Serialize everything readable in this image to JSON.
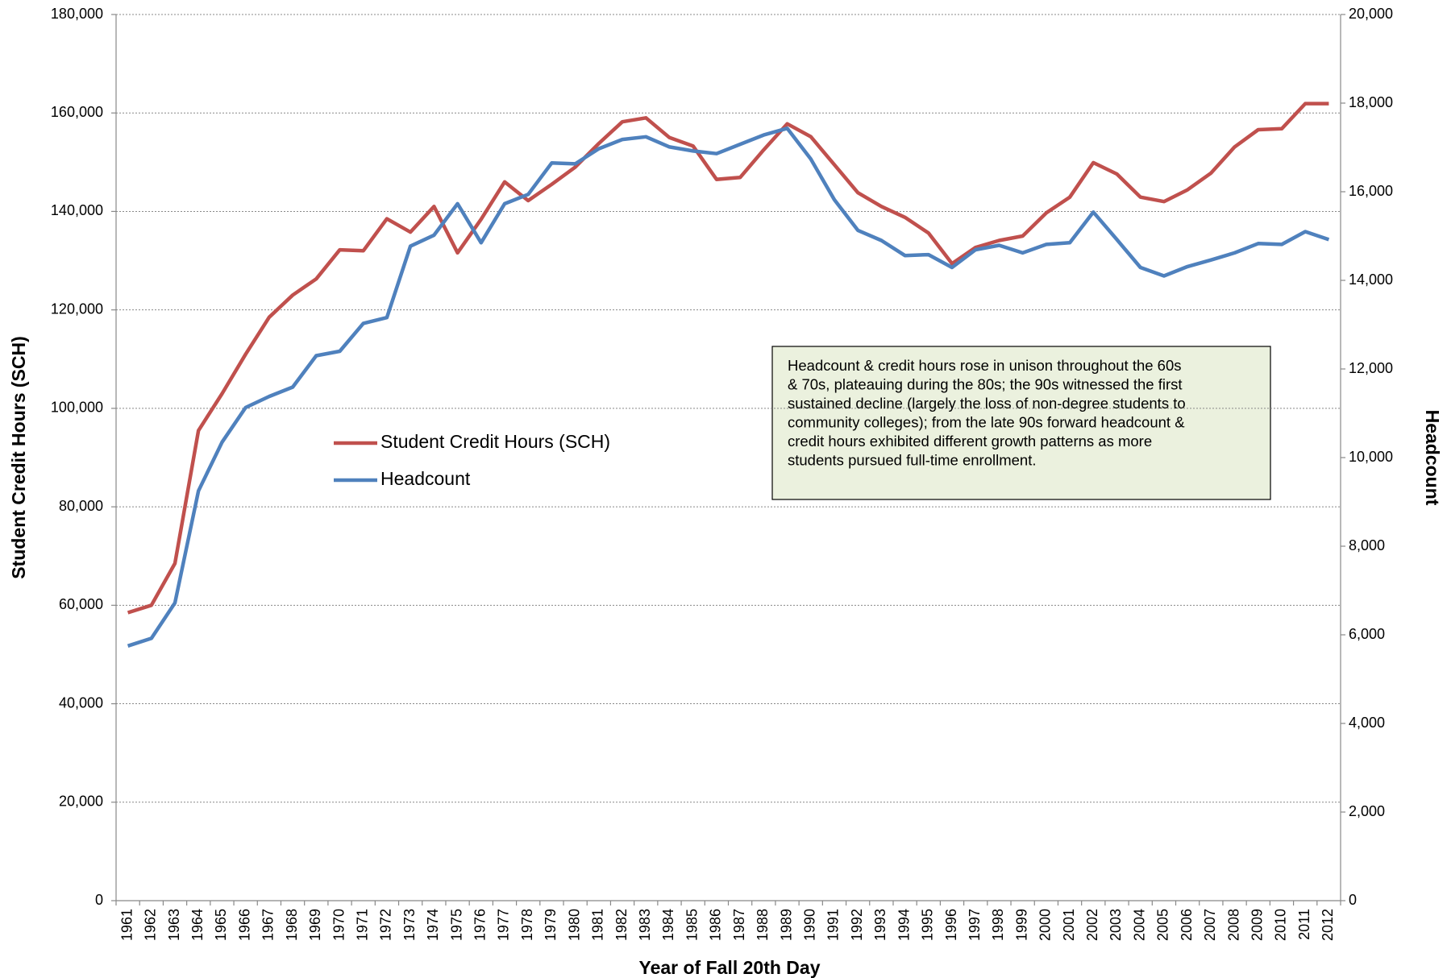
{
  "chart_data": {
    "type": "line",
    "annotation": [
      "Headcount & credit hours rose in unison throughout the 60s",
      "& 70s, plateauing during the 80s; the 90s witnessed the first",
      "sustained decline (largely the loss of non-degree students to",
      "community colleges); from the late 90s forward headcount &",
      "credit hours exhibited different growth patterns as more",
      "students pursued full-time enrollment."
    ],
    "x_label": "Year of Fall 20th Day",
    "y_label": "Student Credit Hours (SCH)",
    "y2_label": "Headcount",
    "categories": [
      "1961",
      "1962",
      "1963",
      "1964",
      "1965",
      "1966",
      "1967",
      "1968",
      "1969",
      "1970",
      "1971",
      "1972",
      "1973",
      "1974",
      "1975",
      "1976",
      "1977",
      "1978",
      "1979",
      "1980",
      "1981",
      "1982",
      "1983",
      "1984",
      "1985",
      "1986",
      "1987",
      "1988",
      "1989",
      "1990",
      "1991",
      "1992",
      "1993",
      "1994",
      "1995",
      "1996",
      "1997",
      "1998",
      "1999",
      "2000",
      "2001",
      "2002",
      "2003",
      "2004",
      "2005",
      "2006",
      "2007",
      "2008",
      "2009",
      "2010",
      "2011",
      "2012"
    ],
    "series": [
      {
        "name": "Student Credit Hours (SCH)",
        "color": "#c0504d",
        "axis": "y",
        "values": [
          58500,
          60000,
          68500,
          95500,
          103000,
          111000,
          118500,
          123000,
          126300,
          132200,
          132000,
          138500,
          135800,
          141000,
          131600,
          138400,
          146000,
          142200,
          145500,
          149000,
          153800,
          158200,
          159000,
          155000,
          153300,
          146500,
          146900,
          152500,
          157800,
          155200,
          149500,
          143800,
          141000,
          138800,
          135600,
          129400,
          132700,
          134100,
          135000,
          139700,
          142900,
          149900,
          147600,
          142900,
          142000,
          144400,
          147800,
          153100,
          156600,
          156800,
          161900,
          161900
        ]
      },
      {
        "name": "Headcount",
        "color": "#4f81bd",
        "axis": "y2",
        "values": [
          5750,
          5920,
          6720,
          9250,
          10350,
          11130,
          11380,
          11590,
          12300,
          12400,
          13030,
          13160,
          14770,
          15020,
          15730,
          14850,
          15730,
          15940,
          16650,
          16630,
          16970,
          17180,
          17240,
          17010,
          16920,
          16860,
          17070,
          17280,
          17430,
          16740,
          15820,
          15130,
          14900,
          14560,
          14580,
          14290,
          14690,
          14790,
          14620,
          14810,
          14850,
          15540,
          14920,
          14290,
          14100,
          14310,
          14460,
          14620,
          14830,
          14810,
          15100,
          14920
        ]
      }
    ],
    "ylim": [
      0,
      180000
    ],
    "yticks": [
      0,
      {
        "value": 20000,
        "label": "20,000"
      },
      {
        "value": 40000,
        "label": "40,000"
      },
      {
        "value": 60000,
        "label": "60,000"
      },
      {
        "value": 80000,
        "label": "80,000"
      },
      {
        "value": 100000,
        "label": "100,000"
      },
      {
        "value": 120000,
        "label": "120,000"
      },
      {
        "value": 140000,
        "label": "140,000"
      },
      {
        "value": 160000,
        "label": "160,000"
      },
      {
        "value": 180000,
        "label": "180,000"
      }
    ],
    "y2lim": [
      0,
      20000
    ],
    "y2ticks": [
      0,
      {
        "value": 2000,
        "label": "2,000"
      },
      {
        "value": 4000,
        "label": "4,000"
      },
      {
        "value": 6000,
        "label": "6,000"
      },
      {
        "value": 8000,
        "label": "8,000"
      },
      {
        "value": 10000,
        "label": "10,000"
      },
      {
        "value": 12000,
        "label": "12,000"
      },
      {
        "value": 14000,
        "label": "14,000"
      },
      {
        "value": 16000,
        "label": "16,000"
      },
      {
        "value": 18000,
        "label": "18,000"
      },
      {
        "value": 20000,
        "label": "20,000"
      }
    ],
    "grid": true
  }
}
